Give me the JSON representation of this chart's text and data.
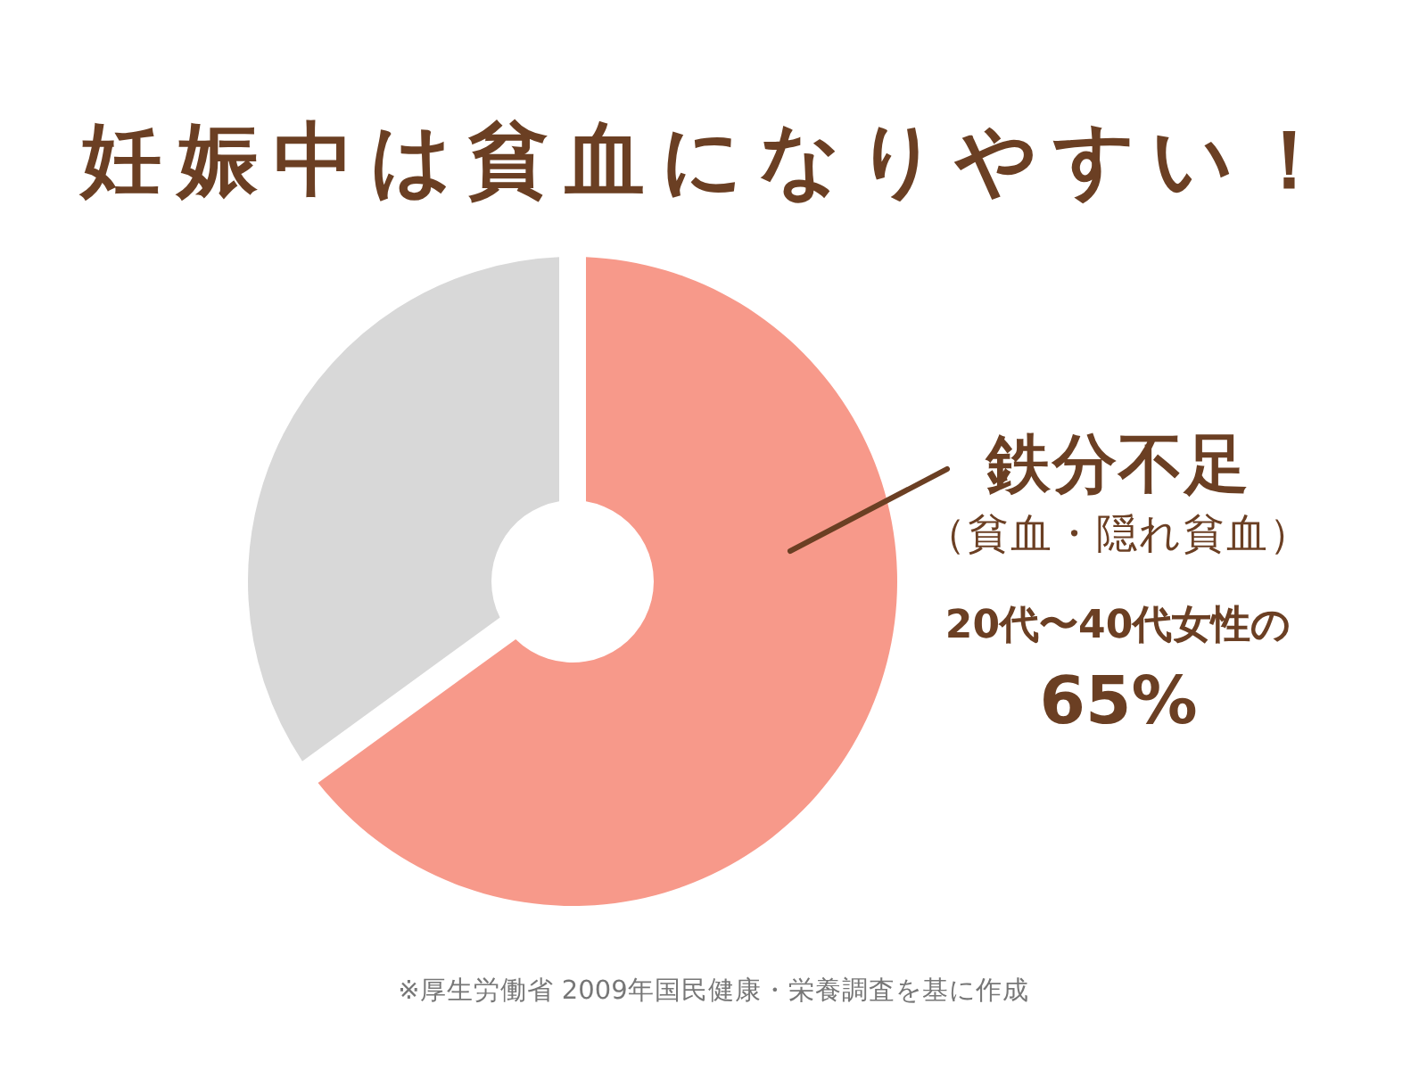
{
  "chart_data": {
    "type": "donut",
    "title": "妊娠中は貧血になりやすい！",
    "categories": [
      "鉄分不足",
      null
    ],
    "values": [
      65,
      35
    ],
    "colors": [
      "#f7998a",
      "#d8d8d8"
    ],
    "value_labels": [
      "65%",
      null
    ],
    "annotations": [
      "（貧血・隠れ貧血）",
      "20代〜40代女性の",
      "※厚生労働省 2009年国民健康・栄養調査を基に作成"
    ],
    "legend": false
  }
}
